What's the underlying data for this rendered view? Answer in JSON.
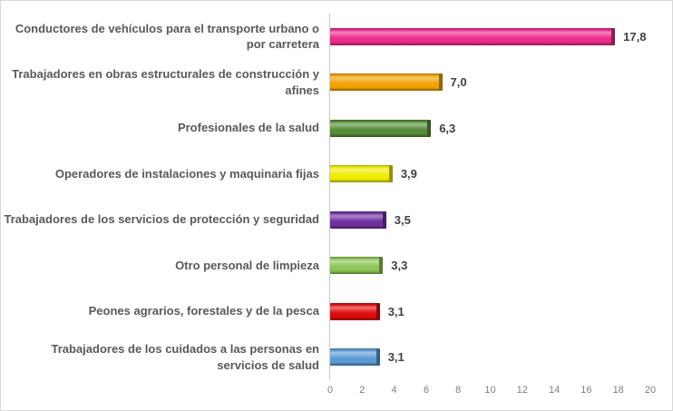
{
  "chart_data": {
    "type": "bar",
    "orientation": "horizontal",
    "title": "",
    "xlabel": "",
    "ylabel": "",
    "grid": false,
    "legend": false,
    "xlim": [
      0,
      20
    ],
    "x_ticks": [
      "0",
      "2",
      "4",
      "6",
      "8",
      "10",
      "12",
      "14",
      "16",
      "18",
      "20"
    ],
    "categories": [
      "Conductores de vehículos para el transporte urbano o por carretera",
      "Trabajadores en obras estructurales de construcción y afines",
      "Profesionales de la salud",
      "Operadores de instalaciones y maquinaria fijas",
      "Trabajadores de los servicios de protección y seguridad",
      "Otro personal de limpieza",
      "Peones agrarios, forestales y de la pesca",
      "Trabajadores de los cuidados a las personas en servicios de salud"
    ],
    "values": [
      17.8,
      7.0,
      6.3,
      3.9,
      3.5,
      3.3,
      3.1,
      3.1
    ],
    "value_labels": [
      "17,8",
      "7,0",
      "6,3",
      "3,9",
      "3,5",
      "3,3",
      "3,1",
      "3,1"
    ],
    "bar_colors": [
      "#EC2B8D",
      "#F2A100",
      "#578C38",
      "#EFED00",
      "#7030A0",
      "#8EC556",
      "#DE0D0D",
      "#5B9BD5"
    ]
  },
  "colors": {
    "axis_line": "#c6c6c6",
    "tick_text": "#7f7f7f",
    "category_text": "#595959",
    "value_text": "#3f3f3f",
    "frame_border": "#d9d9d9",
    "background": "#ffffff"
  }
}
